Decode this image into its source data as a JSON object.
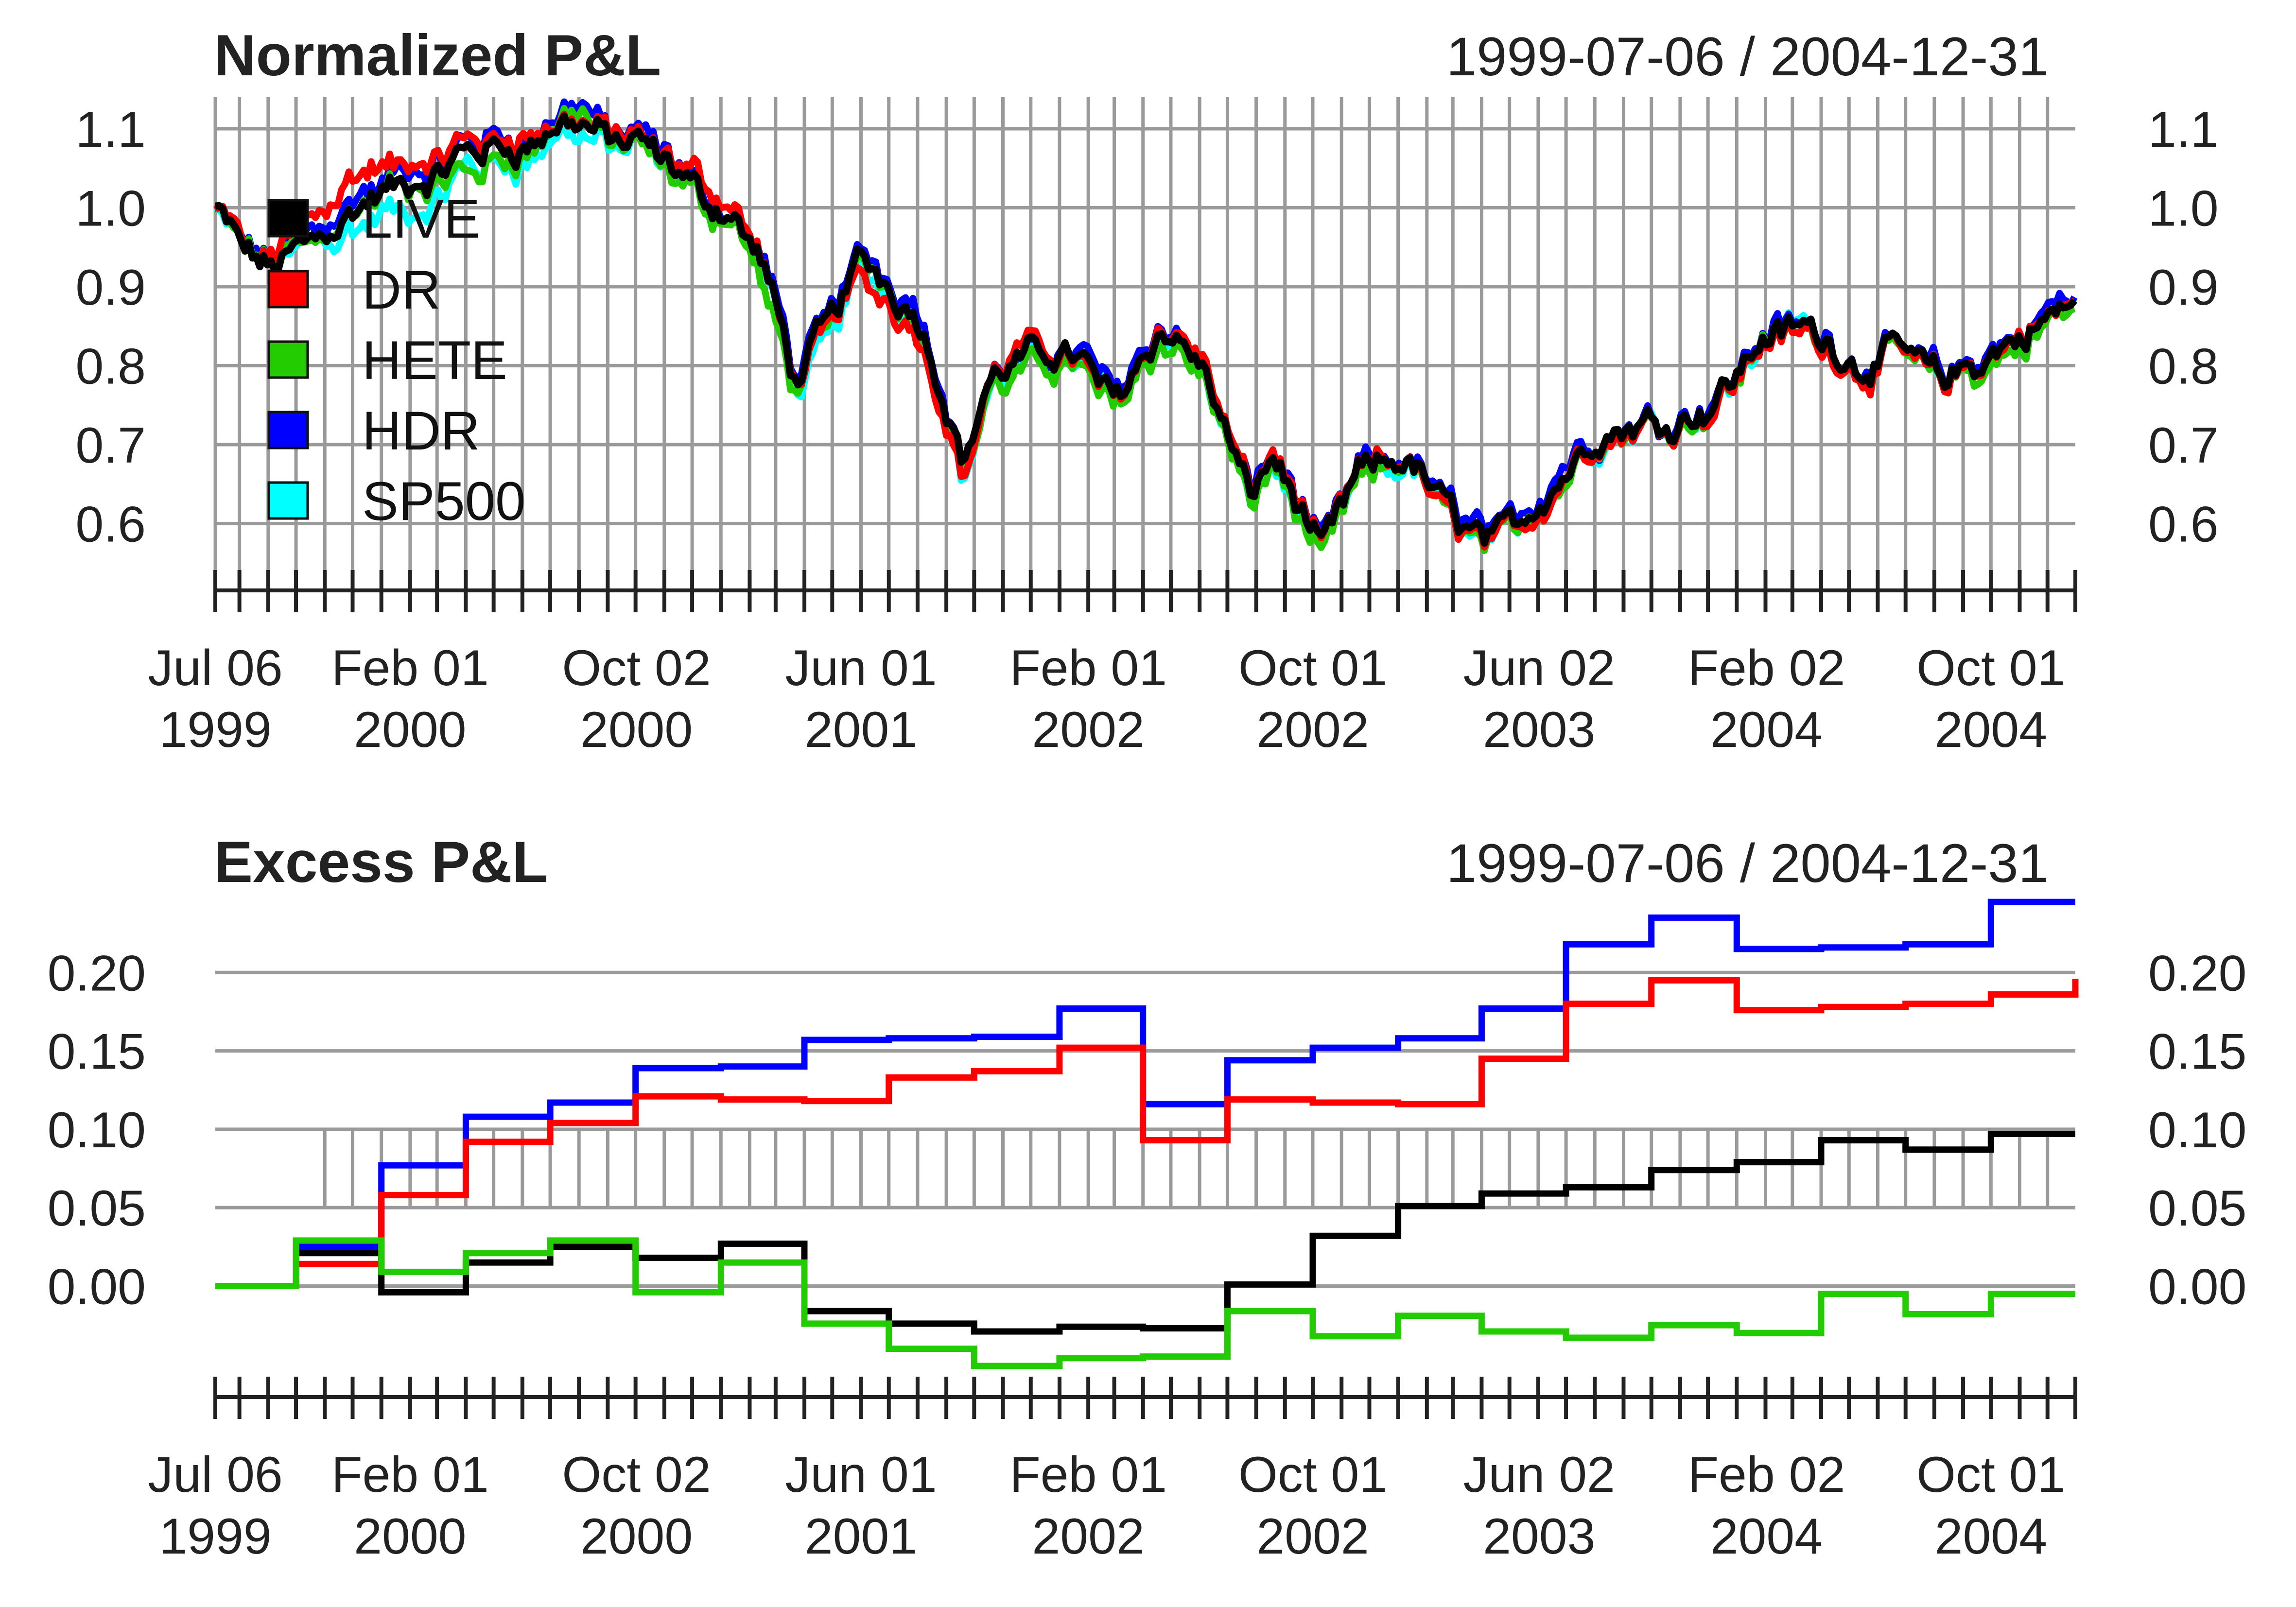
{
  "chart_data": [
    {
      "type": "line",
      "title": "Normalized P&L",
      "subtitle": "1999-07-06 / 2004-12-31",
      "xlabel": "",
      "ylabel": "",
      "xlim": [
        "1999-07-06",
        "2004-12-31"
      ],
      "ylim": [
        0.54,
        1.14
      ],
      "yticks": [
        "0.6",
        "0.7",
        "0.8",
        "0.9",
        "1.0",
        "1.1"
      ],
      "x_tick_labels": [
        {
          "date": "1999-07-06",
          "line1": "Jul 06",
          "line2": "1999"
        },
        {
          "date": "2000-02-01",
          "line1": "Feb 01",
          "line2": "2000"
        },
        {
          "date": "2000-10-02",
          "line1": "Oct 02",
          "line2": "2000"
        },
        {
          "date": "2001-06-01",
          "line1": "Jun 01",
          "line2": "2001"
        },
        {
          "date": "2002-02-01",
          "line1": "Feb 01",
          "line2": "2002"
        },
        {
          "date": "2002-10-01",
          "line1": "Oct 01",
          "line2": "2002"
        },
        {
          "date": "2003-06-02",
          "line1": "Jun 02",
          "line2": "2003"
        },
        {
          "date": "2004-02-02",
          "line1": "Feb 02",
          "line2": "2004"
        },
        {
          "date": "2004-10-01",
          "line1": "Oct 01",
          "line2": "2004"
        }
      ],
      "grid": "vertical monthly lines and horizontal lines at y ticks",
      "legend_position": "top-left",
      "legend": [
        "LIVE",
        "DR",
        "HETE",
        "HDR",
        "SP500"
      ],
      "series": [
        {
          "name": "SP500",
          "color": "#00ffff",
          "offsets": [
            0.0,
            0.0,
            0.0,
            0.0,
            -0.02,
            -0.03,
            -0.035,
            -0.02,
            -0.02,
            -0.01,
            -0.01,
            -0.005,
            0.0,
            0.0,
            -0.01,
            -0.02,
            -0.025,
            -0.01,
            -0.01,
            -0.02,
            -0.01,
            -0.005,
            -0.005,
            0.0,
            0.0,
            -0.01,
            -0.01,
            -0.005,
            -0.01,
            0.0,
            -0.005,
            0.0,
            -0.005,
            -0.005,
            0.0,
            0.0,
            -0.005,
            0.0,
            0.0,
            0.0,
            0.0,
            0.0,
            0.0,
            0.0
          ]
        },
        {
          "name": "HDR",
          "color": "#0000ff",
          "offsets": [
            0.0,
            0.005,
            0.01,
            0.005,
            0.01,
            0.015,
            0.015,
            0.01,
            0.015,
            0.02,
            0.01,
            0.01,
            0.005,
            0.005,
            0.01,
            0.005,
            0.005,
            0.0,
            0.01,
            0.0,
            0.0,
            -0.005,
            0.005,
            0.01,
            0.01,
            0.005,
            0.005,
            0.01,
            0.005,
            0.005,
            0.005,
            0.01,
            0.005,
            0.005,
            0.005,
            0.005,
            0.005,
            0.0,
            0.005,
            0.0,
            0.0,
            0.005,
            0.005,
            0.005
          ]
        },
        {
          "name": "HETE",
          "color": "#22cc00",
          "offsets": [
            0.0,
            0.0,
            0.01,
            0.0,
            0.0,
            0.0,
            -0.005,
            -0.03,
            -0.01,
            0.01,
            0.0,
            -0.01,
            -0.01,
            -0.005,
            -0.03,
            -0.01,
            -0.01,
            0.0,
            0.0,
            -0.01,
            -0.01,
            -0.02,
            -0.01,
            -0.01,
            -0.01,
            -0.015,
            -0.01,
            -0.01,
            -0.01,
            -0.005,
            0.0,
            -0.005,
            -0.005,
            -0.005,
            -0.01,
            -0.01,
            -0.005,
            -0.005,
            -0.005,
            -0.005,
            -0.005,
            -0.005,
            -0.01,
            -0.01
          ]
        },
        {
          "name": "DR",
          "color": "#ff0000",
          "offsets": [
            0.0,
            0.005,
            0.01,
            0.03,
            0.05,
            0.03,
            0.02,
            0.01,
            0.01,
            0.0,
            0.005,
            0.0,
            0.02,
            0.01,
            0.0,
            0.0,
            -0.01,
            -0.02,
            -0.02,
            -0.025,
            0.0,
            0.01,
            -0.01,
            0.0,
            0.0,
            0.01,
            0.005,
            0.005,
            0.0,
            0.0,
            0.0,
            -0.005,
            -0.005,
            -0.005,
            -0.005,
            -0.01,
            -0.01,
            -0.005,
            -0.005,
            -0.01,
            -0.005,
            -0.005,
            0.0,
            0.005
          ]
        },
        {
          "name": "LIVE",
          "color": "#000000",
          "x": [
            "1999-07-06",
            "1999-08-01",
            "1999-09-01",
            "1999-10-15",
            "1999-12-01",
            "2000-01-10",
            "2000-03-01",
            "2000-04-01",
            "2000-06-01",
            "2000-08-01",
            "2000-09-01",
            "2000-10-15",
            "2000-12-01",
            "2001-01-15",
            "2001-02-15",
            "2001-03-22",
            "2001-05-01",
            "2001-06-01",
            "2001-08-01",
            "2001-09-21",
            "2001-10-15",
            "2001-12-01",
            "2002-01-15",
            "2002-03-01",
            "2002-04-15",
            "2002-06-01",
            "2002-07-24",
            "2002-08-20",
            "2002-10-09",
            "2002-11-20",
            "2003-01-10",
            "2003-03-11",
            "2003-04-15",
            "2003-06-02",
            "2003-08-01",
            "2003-10-01",
            "2003-12-01",
            "2004-02-02",
            "2004-03-15",
            "2004-05-15",
            "2004-07-01",
            "2004-08-13",
            "2004-10-01",
            "2004-12-31"
          ],
          "values": [
            1.0,
            0.95,
            0.92,
            0.96,
            1.0,
            1.02,
            1.03,
            1.07,
            1.08,
            1.11,
            1.09,
            1.07,
            1.02,
            0.99,
            0.93,
            0.78,
            0.86,
            0.94,
            0.87,
            0.68,
            0.78,
            0.81,
            0.82,
            0.76,
            0.85,
            0.81,
            0.63,
            0.69,
            0.56,
            0.66,
            0.68,
            0.6,
            0.58,
            0.63,
            0.71,
            0.73,
            0.75,
            0.84,
            0.85,
            0.8,
            0.82,
            0.78,
            0.81,
            0.88
          ]
        }
      ]
    },
    {
      "type": "line",
      "step": true,
      "title": "Excess P&L",
      "subtitle": "1999-07-06 / 2004-12-31",
      "xlabel": "",
      "ylabel": "",
      "xlim": [
        "1999-07-06",
        "2004-12-31"
      ],
      "ylim": [
        -0.06,
        0.25
      ],
      "yticks": [
        "0.00",
        "0.05",
        "0.10",
        "0.15",
        "0.20"
      ],
      "x_tick_labels": [
        {
          "date": "1999-07-06",
          "line1": "Jul 06",
          "line2": "1999"
        },
        {
          "date": "2000-02-01",
          "line1": "Feb 01",
          "line2": "2000"
        },
        {
          "date": "2000-10-02",
          "line1": "Oct 02",
          "line2": "2000"
        },
        {
          "date": "2001-06-01",
          "line1": "Jun 01",
          "line2": "2001"
        },
        {
          "date": "2002-02-01",
          "line1": "Feb 01",
          "line2": "2002"
        },
        {
          "date": "2002-10-01",
          "line1": "Oct 01",
          "line2": "2002"
        },
        {
          "date": "2003-06-02",
          "line1": "Jun 02",
          "line2": "2003"
        },
        {
          "date": "2004-02-02",
          "line1": "Feb 02",
          "line2": "2004"
        },
        {
          "date": "2004-10-01",
          "line1": "Oct 01",
          "line2": "2004"
        }
      ],
      "grid": "horizontal lines at y ticks; vertical monthly lines",
      "step_dates": [
        "1999-07-06",
        "1999-10-01",
        "2000-01-01",
        "2000-04-01",
        "2000-07-01",
        "2000-10-01",
        "2001-01-01",
        "2001-04-01",
        "2001-07-01",
        "2001-10-01",
        "2002-01-01",
        "2002-04-01",
        "2002-07-01",
        "2002-10-01",
        "2003-01-01",
        "2003-04-01",
        "2003-07-01",
        "2003-10-01",
        "2004-01-01",
        "2004-04-01",
        "2004-07-01",
        "2004-10-01",
        "2004-12-31"
      ],
      "series": [
        {
          "name": "HDR",
          "color": "#0000ff",
          "values": [
            0.0,
            0.025,
            0.077,
            0.108,
            0.117,
            0.139,
            0.14,
            0.157,
            0.158,
            0.159,
            0.177,
            0.116,
            0.144,
            0.152,
            0.158,
            0.177,
            0.218,
            0.235,
            0.215,
            0.216,
            0.218,
            0.245,
            0.245
          ]
        },
        {
          "name": "DR",
          "color": "#ff0000",
          "values": [
            0.0,
            0.014,
            0.058,
            0.092,
            0.104,
            0.121,
            0.119,
            0.118,
            0.133,
            0.137,
            0.152,
            0.093,
            0.119,
            0.117,
            0.116,
            0.145,
            0.18,
            0.195,
            0.176,
            0.178,
            0.18,
            0.186,
            0.196
          ]
        },
        {
          "name": "LIVE",
          "color": "#000000",
          "values": [
            0.0,
            0.021,
            -0.004,
            0.015,
            0.025,
            0.018,
            0.027,
            -0.016,
            -0.024,
            -0.029,
            -0.026,
            -0.027,
            0.001,
            0.032,
            0.051,
            0.059,
            0.063,
            0.074,
            0.079,
            0.093,
            0.087,
            0.097,
            0.097
          ]
        },
        {
          "name": "HETE",
          "color": "#22cc00",
          "values": [
            0.0,
            0.029,
            0.009,
            0.021,
            0.029,
            -0.004,
            0.015,
            -0.024,
            -0.04,
            -0.051,
            -0.046,
            -0.045,
            -0.016,
            -0.032,
            -0.019,
            -0.029,
            -0.033,
            -0.025,
            -0.03,
            -0.005,
            -0.018,
            -0.005,
            -0.005
          ]
        }
      ]
    }
  ]
}
